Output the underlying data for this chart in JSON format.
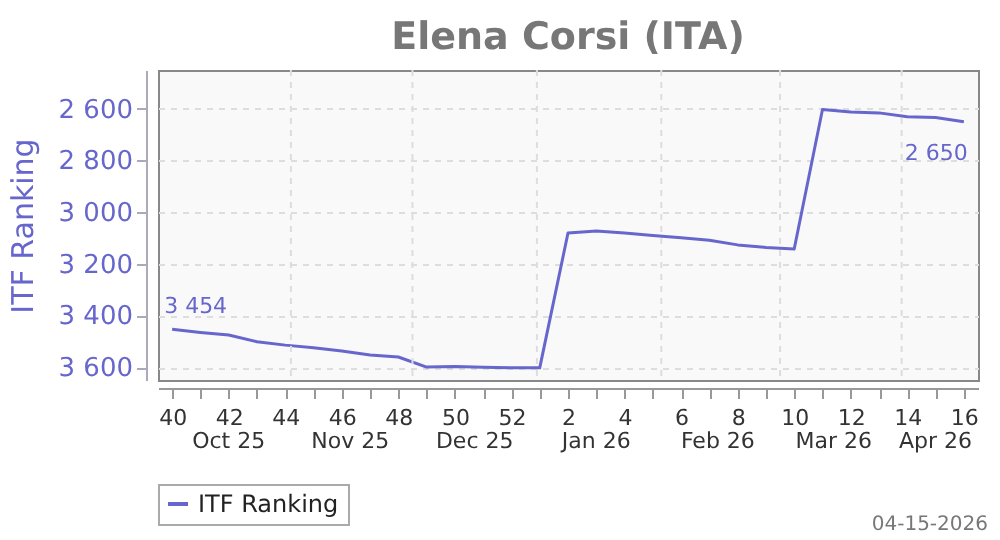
{
  "chart_data": {
    "type": "line",
    "title": "Elena Corsi (ITA)",
    "ylabel": "ITF Ranking",
    "categories": [
      "40",
      null,
      "42",
      null,
      "44",
      null,
      "46",
      null,
      "48",
      null,
      "50",
      null,
      "52",
      null,
      "2",
      null,
      "4",
      null,
      "6",
      null,
      "8",
      null,
      "10",
      null,
      "12",
      null,
      "14",
      null,
      "16"
    ],
    "series": [
      {
        "name": "ITF Ranking",
        "color": "#6666cc",
        "values": [
          3454,
          3466,
          3476,
          3502,
          3515,
          3525,
          3538,
          3553,
          3561,
          3600,
          3598,
          3601,
          3603,
          3603,
          3081,
          3073,
          3081,
          3091,
          3099,
          3109,
          3127,
          3137,
          3143,
          2603,
          2613,
          2616,
          2631,
          2634,
          2650
        ],
        "value_labels": [
          "3 454",
          null,
          null,
          null,
          null,
          null,
          null,
          null,
          null,
          null,
          null,
          null,
          null,
          null,
          null,
          null,
          null,
          null,
          null,
          null,
          null,
          null,
          null,
          null,
          null,
          null,
          null,
          null,
          "2 650"
        ]
      }
    ],
    "ylim": [
      3650,
      2450
    ],
    "yticks": [
      {
        "value": 2600,
        "label": "2 600"
      },
      {
        "value": 2800,
        "label": "2 800"
      },
      {
        "value": 3000,
        "label": "3 000"
      },
      {
        "value": 3200,
        "label": "3 200"
      },
      {
        "value": 3400,
        "label": "3 400"
      },
      {
        "value": 3600,
        "label": "3 600"
      }
    ],
    "annotations": [
      "Oct 25",
      "Nov 25",
      "Dec 25",
      "Jan 26",
      "Feb 26",
      "Mar 26",
      "Apr 26",
      "04-15-2026"
    ],
    "grid": true,
    "legend": "bottom",
    "marker": "none",
    "line_style": "solid"
  }
}
